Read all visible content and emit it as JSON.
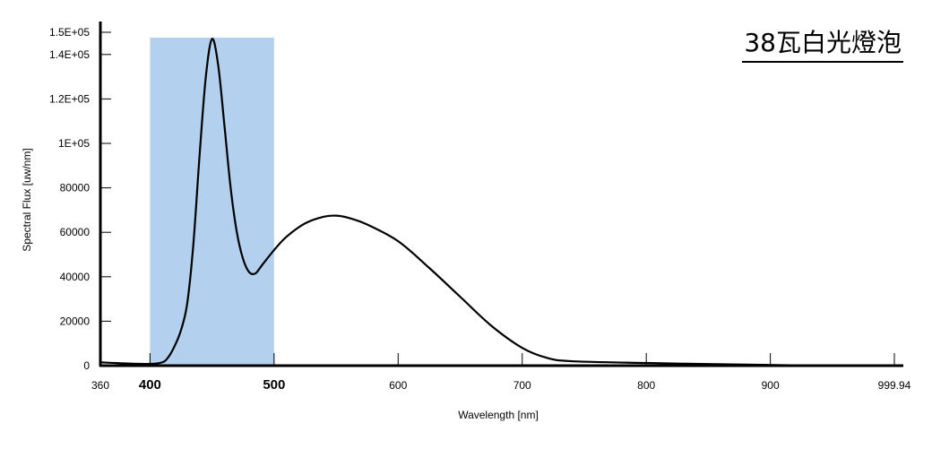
{
  "chart_data": {
    "type": "line",
    "title": "38瓦白光燈泡",
    "xlabel": "Wavelength [nm]",
    "ylabel": "Spectral Flux [uw/nm]",
    "xlim": [
      360,
      999.94
    ],
    "ylim": [
      0,
      150000
    ],
    "grid": false,
    "x_ticks": [
      {
        "value": 360,
        "label": "360",
        "highlight": false
      },
      {
        "value": 400,
        "label": "400",
        "highlight": true
      },
      {
        "value": 500,
        "label": "500",
        "highlight": true
      },
      {
        "value": 600,
        "label": "600",
        "highlight": false
      },
      {
        "value": 700,
        "label": "700",
        "highlight": false
      },
      {
        "value": 800,
        "label": "800",
        "highlight": false
      },
      {
        "value": 900,
        "label": "900",
        "highlight": false
      },
      {
        "value": 999.94,
        "label": "999.94",
        "highlight": false
      }
    ],
    "y_ticks": [
      {
        "value": 0,
        "label": "0"
      },
      {
        "value": 20000,
        "label": "20000"
      },
      {
        "value": 40000,
        "label": "40000"
      },
      {
        "value": 60000,
        "label": "60000"
      },
      {
        "value": 80000,
        "label": "80000"
      },
      {
        "value": 100000,
        "label": "1E+05"
      },
      {
        "value": 120000,
        "label": "1.2E+05"
      },
      {
        "value": 140000,
        "label": "1.4E+05"
      },
      {
        "value": 150000,
        "label": "1.5E+05"
      }
    ],
    "highlight_band": {
      "from": 400,
      "to": 500,
      "color": "#b3d1ee"
    },
    "highlight_label_color": "#1a3fc4",
    "line_color": "#000000",
    "series": [
      {
        "name": "Spectral Flux",
        "x": [
          360,
          380,
          400,
          410,
          415,
          420,
          425,
          430,
          435,
          440,
          445,
          450,
          455,
          460,
          465,
          470,
          475,
          480,
          485,
          490,
          500,
          510,
          525,
          540,
          550,
          560,
          575,
          600,
          625,
          650,
          675,
          700,
          720,
          740,
          800,
          850,
          900,
          950,
          999.94
        ],
        "y": [
          1500,
          1000,
          800,
          1500,
          4000,
          9000,
          16000,
          28000,
          55000,
          95000,
          130000,
          147000,
          135000,
          108000,
          80000,
          60000,
          48000,
          42000,
          41500,
          45000,
          52000,
          58000,
          64000,
          67000,
          67500,
          66500,
          63500,
          56000,
          44000,
          31000,
          18000,
          8000,
          3500,
          2000,
          1200,
          700,
          300,
          0,
          0
        ]
      }
    ]
  }
}
